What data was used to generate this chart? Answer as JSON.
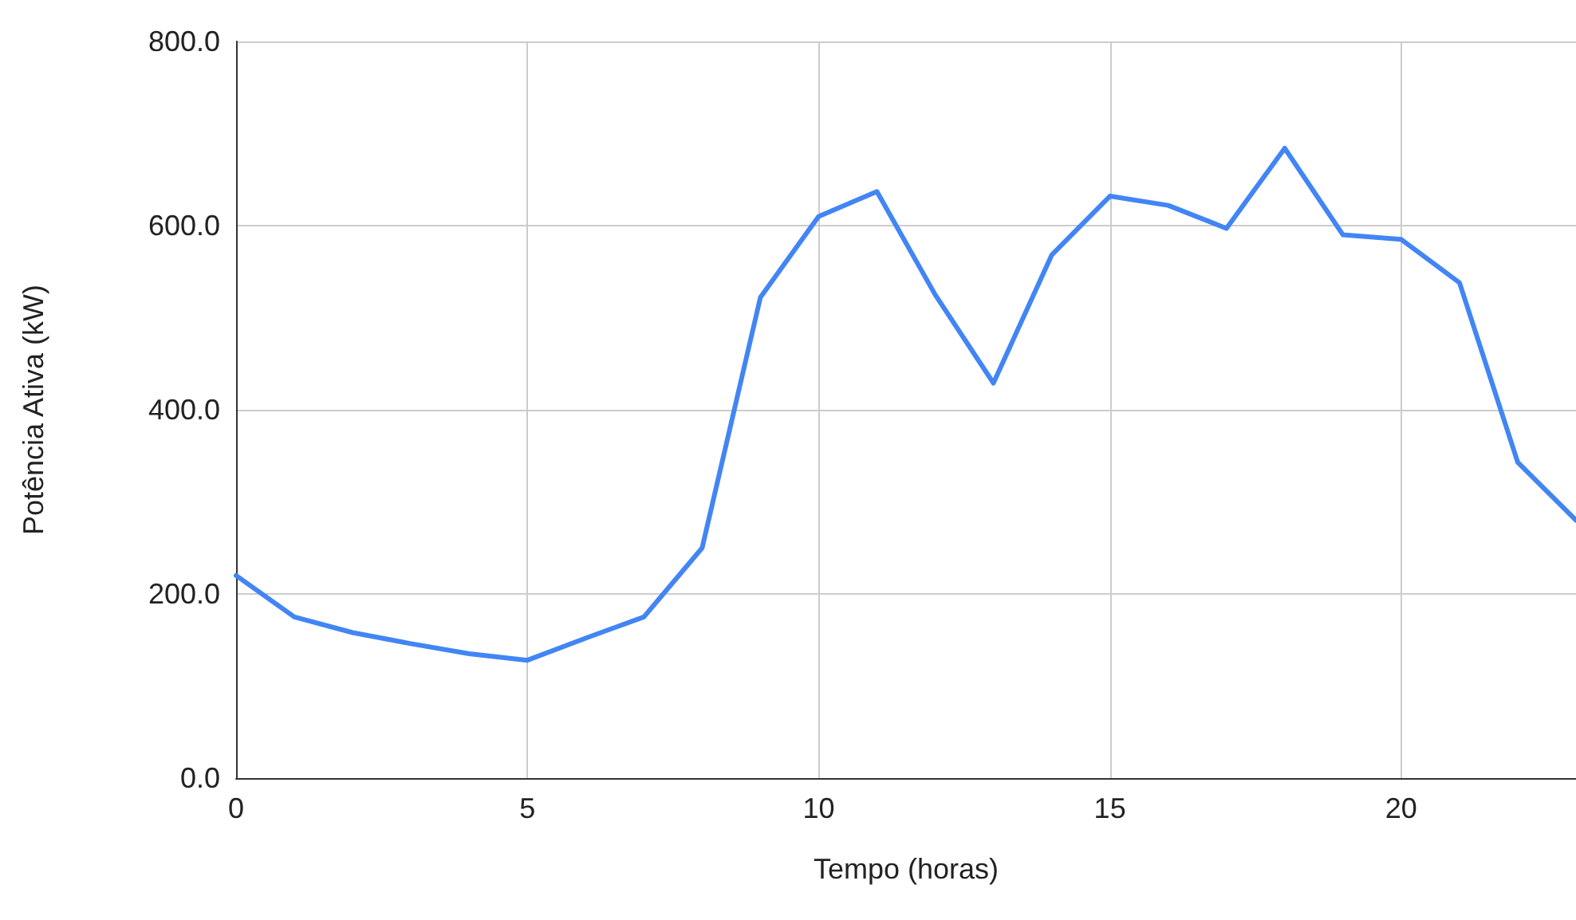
{
  "chart_data": {
    "type": "line",
    "xlabel": "Tempo (horas)",
    "ylabel": "Potência Ativa (kW)",
    "x": [
      0,
      1,
      2,
      3,
      4,
      5,
      6,
      7,
      8,
      9,
      10,
      11,
      12,
      13,
      14,
      15,
      16,
      17,
      18,
      19,
      20,
      21,
      22,
      23
    ],
    "series": [
      {
        "color": "#4285f4",
        "values": [
          220,
          175,
          158,
          146,
          135,
          128,
          152,
          175,
          250,
          522,
          610,
          637,
          525,
          429,
          568,
          632,
          622,
          597,
          684,
          590,
          585,
          538,
          343,
          280
        ]
      }
    ],
    "xlim": [
      0,
      23
    ],
    "xticks": [
      0,
      5,
      10,
      15,
      20
    ],
    "ylim": [
      0,
      800
    ],
    "yticks": [
      {
        "value": 0,
        "label": "0.0"
      },
      {
        "value": 200,
        "label": "200.0"
      },
      {
        "value": 400,
        "label": "400.0"
      },
      {
        "value": 600,
        "label": "600.0"
      },
      {
        "value": 800,
        "label": "800.0"
      }
    ],
    "grid": true,
    "marker": "none",
    "line_style": "solid"
  }
}
